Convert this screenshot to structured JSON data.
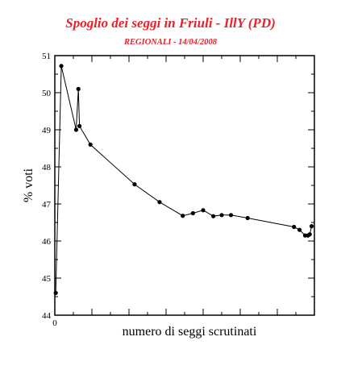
{
  "header": {
    "title": "Spoglio dei seggi in Friuli - IllY  (PD)",
    "subtitle": "REGIONALI - 14/04/2008"
  },
  "colors": {
    "title": "#e8212b",
    "line": "#000000",
    "background": "#ffffff"
  },
  "chart_data": {
    "type": "line",
    "title": "Spoglio dei seggi in Friuli - IllY  (PD)",
    "subtitle": "REGIONALI - 14/04/2008",
    "xlabel": "numero di seggi scrutinati",
    "ylabel": "% voti",
    "xlim": [
      0,
      1400
    ],
    "ylim": [
      44,
      51
    ],
    "x_ticks": [
      0,
      200,
      400,
      600,
      800,
      1000,
      1200
    ],
    "x_tick_labels": [
      "0",
      "",
      "",
      "",
      "",
      "",
      ""
    ],
    "y_ticks": [
      44,
      45,
      46,
      47,
      48,
      49,
      50,
      51
    ],
    "y_tick_labels": [
      "44",
      "45",
      "46",
      "47",
      "48",
      "49",
      "50",
      "51"
    ],
    "grid": false,
    "legend": "none",
    "series": [
      {
        "x": [
          5,
          35,
          115,
          127,
          133,
          192,
          430,
          565,
          690,
          745,
          800,
          855,
          900,
          950,
          1040,
          1290,
          1320,
          1350,
          1365,
          1375,
          1385
        ],
        "y": [
          44.6,
          50.72,
          49.0,
          50.1,
          49.1,
          48.6,
          47.53,
          47.05,
          46.68,
          46.75,
          46.83,
          46.67,
          46.7,
          46.7,
          46.62,
          46.38,
          46.3,
          46.15,
          46.15,
          46.18,
          46.4
        ]
      }
    ]
  }
}
